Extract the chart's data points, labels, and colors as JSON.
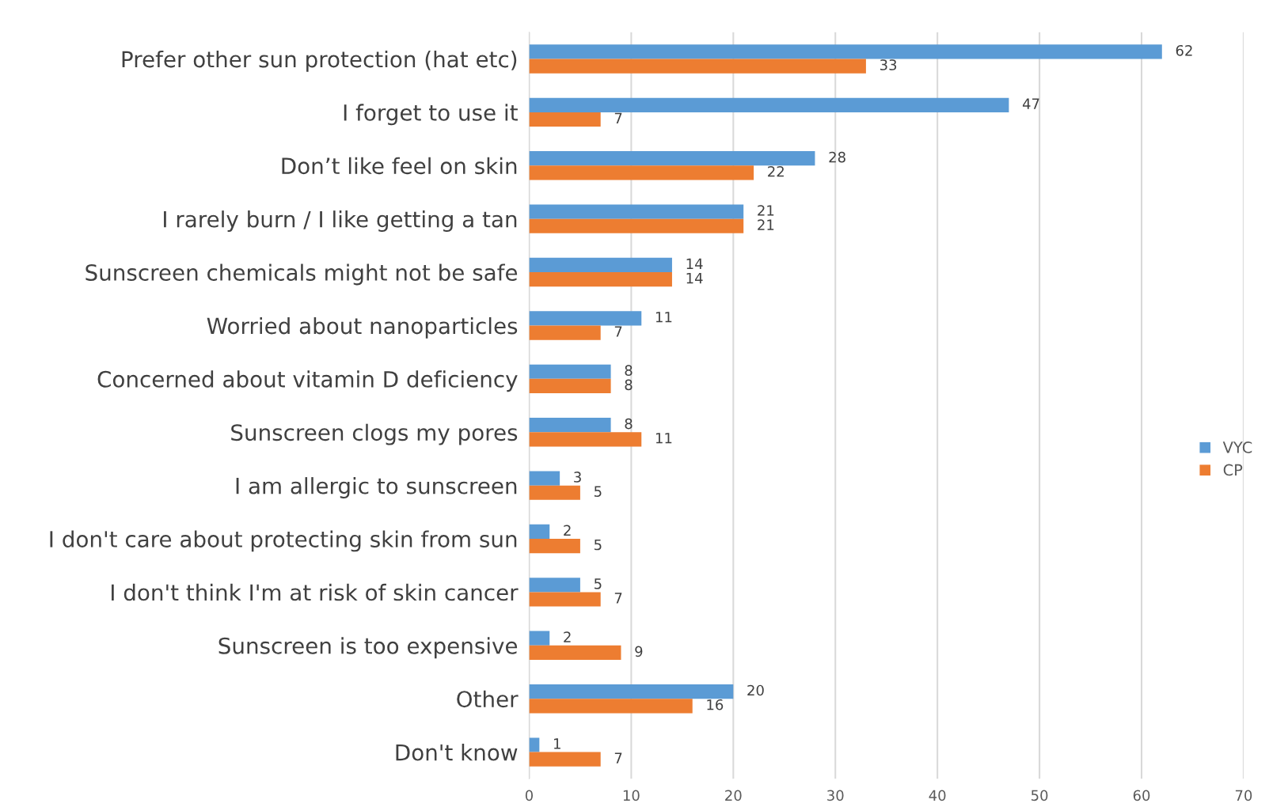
{
  "chart_data": {
    "type": "bar",
    "orientation": "horizontal",
    "categories": [
      "Prefer other sun protection (hat etc)",
      "I forget to use it",
      "Don’t like feel on skin",
      "I rarely burn / I like getting a tan",
      "Sunscreen chemicals might not be safe",
      "Worried about nanoparticles",
      "Concerned about vitamin D deficiency",
      "Sunscreen clogs my pores",
      "I am allergic to sunscreen",
      "I don't care about protecting skin from sun",
      "I don't think I'm at risk of skin cancer",
      "Sunscreen is too expensive",
      "Other",
      "Don't know"
    ],
    "series": [
      {
        "name": "VYC",
        "color": "#5b9bd5",
        "values": [
          62,
          47,
          28,
          21,
          14,
          11,
          8,
          8,
          3,
          2,
          5,
          2,
          20,
          1
        ]
      },
      {
        "name": "CP",
        "color": "#ed7d31",
        "values": [
          33,
          7,
          22,
          21,
          14,
          7,
          8,
          11,
          5,
          5,
          7,
          9,
          16,
          7
        ]
      }
    ],
    "xlim": [
      0,
      70
    ],
    "xticks": [
      0,
      10,
      20,
      30,
      40,
      50,
      60,
      70
    ],
    "grid": "x",
    "legend": "right",
    "data_labels": true
  }
}
